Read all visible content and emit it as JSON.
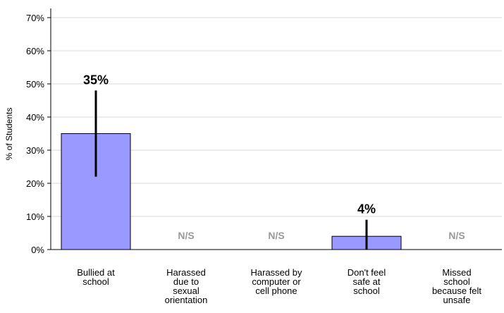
{
  "chart_data": {
    "type": "bar",
    "ylabel": "% of Students",
    "ylim": [
      0,
      70
    ],
    "yticks": [
      "0%",
      "10%",
      "20%",
      "30%",
      "40%",
      "50%",
      "60%",
      "70%"
    ],
    "grid": true,
    "categories": [
      [
        "Bullied at",
        "school"
      ],
      [
        "Harassed",
        "due to",
        "sexual",
        "orientation"
      ],
      [
        "Harassed by",
        "computer or",
        "cell phone"
      ],
      [
        "Don't feel",
        "safe at",
        "school"
      ],
      [
        "Missed",
        "school",
        "because felt",
        "unsafe"
      ]
    ],
    "values": [
      35,
      null,
      null,
      4,
      null
    ],
    "error_low": [
      22,
      null,
      null,
      0,
      null
    ],
    "error_high": [
      48,
      null,
      null,
      9,
      null
    ],
    "data_labels": [
      "35%",
      "N/S",
      "N/S",
      "4%",
      "N/S"
    ],
    "bar_color": "#9999ff",
    "ns_color": "#999999"
  }
}
